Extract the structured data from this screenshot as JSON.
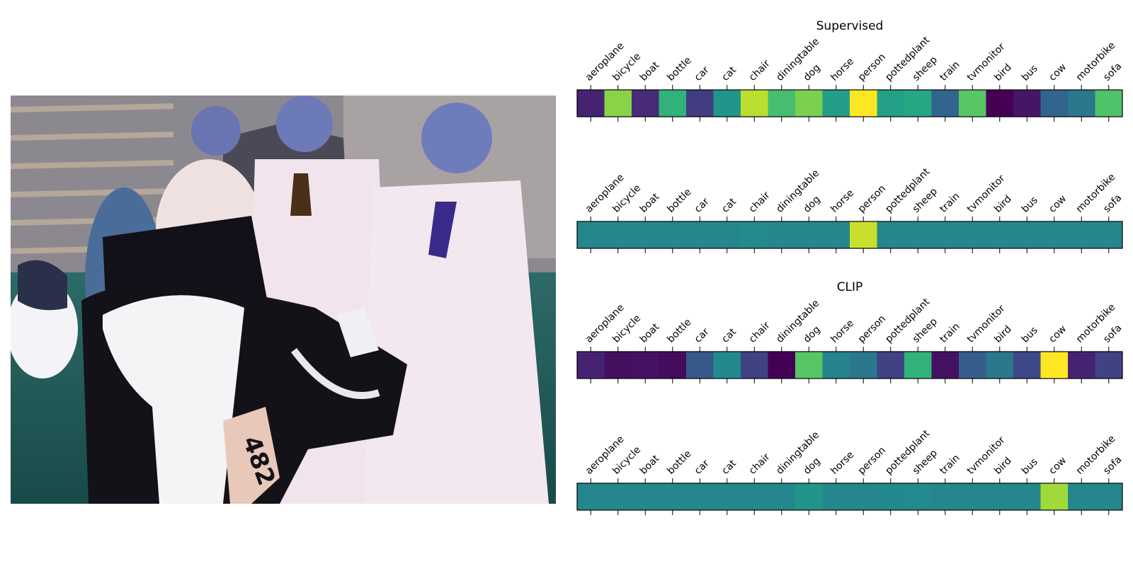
{
  "chart_data": {
    "type": "heatmap",
    "colormap": "viridis",
    "categories": [
      "aeroplane",
      "bicycle",
      "boat",
      "bottle",
      "car",
      "cat",
      "chair",
      "diningtable",
      "dog",
      "horse",
      "person",
      "pottedplant",
      "sheep",
      "train",
      "tvmonitor",
      "bird",
      "bus",
      "cow",
      "motorbike",
      "sofa"
    ],
    "image": {
      "description_icon": "photo-icon",
      "colors": {
        "grass": "#1f5a55",
        "coat": "#f2e6ee",
        "cow_black": "#121018",
        "cow_white": "#f4f4f6",
        "skin": "#6a78b8",
        "barn": "#8f8a8f",
        "tag": "#e8c8b8",
        "tie": "#3a2a8a"
      }
    },
    "panels": [
      {
        "title": "Supervised",
        "values": [
          0.1,
          0.82,
          0.12,
          0.65,
          0.18,
          0.52,
          0.9,
          0.7,
          0.8,
          0.55,
          1.0,
          0.57,
          0.6,
          0.33,
          0.74,
          0.0,
          0.06,
          0.33,
          0.4,
          0.72
        ]
      },
      {
        "title": "",
        "values": [
          0.46,
          0.46,
          0.46,
          0.46,
          0.46,
          0.46,
          0.48,
          0.46,
          0.46,
          0.46,
          0.92,
          0.46,
          0.46,
          0.46,
          0.46,
          0.46,
          0.46,
          0.46,
          0.46,
          0.46
        ]
      },
      {
        "title": "CLIP",
        "values": [
          0.1,
          0.04,
          0.05,
          0.03,
          0.28,
          0.47,
          0.2,
          0.0,
          0.74,
          0.45,
          0.4,
          0.2,
          0.65,
          0.05,
          0.3,
          0.4,
          0.22,
          1.0,
          0.1,
          0.2
        ]
      },
      {
        "title": "",
        "values": [
          0.46,
          0.46,
          0.46,
          0.46,
          0.46,
          0.46,
          0.46,
          0.46,
          0.52,
          0.46,
          0.46,
          0.47,
          0.48,
          0.46,
          0.46,
          0.46,
          0.46,
          0.86,
          0.46,
          0.46
        ]
      }
    ]
  }
}
